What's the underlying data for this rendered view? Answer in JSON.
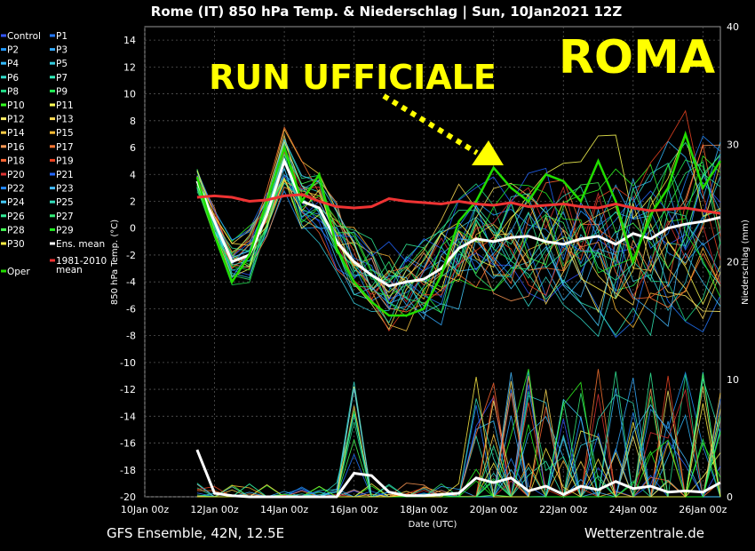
{
  "header": {
    "title": "Rome  (IT)  850 hPa Temp. & Niederschlag | Sun, 10Jan2021 12Z"
  },
  "footer": {
    "left": "GFS Ensemble, 42N, 12.5E",
    "right": "Wetterzentrale.de"
  },
  "annotations": {
    "run_label": "RUN UFFICIALE",
    "city_label": "ROMA",
    "annotation_color": "#ffff00"
  },
  "legend": [
    {
      "label": "Control",
      "color": "#3355ff"
    },
    {
      "label": "P1",
      "color": "#2277ff"
    },
    {
      "label": "P2",
      "color": "#2299ff"
    },
    {
      "label": "P3",
      "color": "#33aaff"
    },
    {
      "label": "P4",
      "color": "#33bbff"
    },
    {
      "label": "P5",
      "color": "#33ccdd"
    },
    {
      "label": "P6",
      "color": "#33ddcc"
    },
    {
      "label": "P7",
      "color": "#33eebb"
    },
    {
      "label": "P8",
      "color": "#22dd88"
    },
    {
      "label": "P9",
      "color": "#22ee55"
    },
    {
      "label": "P10",
      "color": "#33ff22"
    },
    {
      "label": "P11",
      "color": "#ffff55"
    },
    {
      "label": "P12",
      "color": "#ffee66"
    },
    {
      "label": "P13",
      "color": "#ffdd55"
    },
    {
      "label": "P14",
      "color": "#ffcc44"
    },
    {
      "label": "P15",
      "color": "#ffbb33"
    },
    {
      "label": "P16",
      "color": "#ff9955"
    },
    {
      "label": "P17",
      "color": "#ff7733"
    },
    {
      "label": "P18",
      "color": "#ff6633"
    },
    {
      "label": "P19",
      "color": "#ee4422"
    },
    {
      "label": "P20",
      "color": "#dd3333"
    },
    {
      "label": "P21",
      "color": "#2266ff"
    },
    {
      "label": "P22",
      "color": "#2288ff"
    },
    {
      "label": "P23",
      "color": "#44bbff"
    },
    {
      "label": "P24",
      "color": "#44ccff"
    },
    {
      "label": "P25",
      "color": "#33ddbb"
    },
    {
      "label": "P26",
      "color": "#33ee99"
    },
    {
      "label": "P27",
      "color": "#33ee77"
    },
    {
      "label": "P28",
      "color": "#44ff55"
    },
    {
      "label": "P29",
      "color": "#22ee22"
    },
    {
      "label": "P30",
      "color": "#ffee44"
    },
    {
      "label": "Ens. mean",
      "color": "#ffffff"
    },
    {
      "label": "Oper",
      "color": "#22dd00"
    },
    {
      "label": "1981-2010 mean",
      "color": "#ee3333"
    }
  ],
  "chart_data": {
    "type": "line",
    "ylabel": "850 hPa Temp. (°C)",
    "y2label": "Niederschlag (mm)",
    "xlabel": "Date (UTC)",
    "xlim": [
      0,
      16.5
    ],
    "ylim": [
      -20,
      15
    ],
    "y2lim": [
      0,
      40
    ],
    "xticks": [
      {
        "x": 0,
        "label": "10Jan 00z"
      },
      {
        "x": 2,
        "label": "12Jan 00z"
      },
      {
        "x": 4,
        "label": "14Jan 00z"
      },
      {
        "x": 6,
        "label": "16Jan 00z"
      },
      {
        "x": 8,
        "label": "18Jan 00z"
      },
      {
        "x": 10,
        "label": "20Jan 00z"
      },
      {
        "x": 12,
        "label": "22Jan 00z"
      },
      {
        "x": 14,
        "label": "24Jan 00z"
      },
      {
        "x": 16,
        "label": "26Jan 00z"
      }
    ],
    "yticks": [
      14,
      12,
      10,
      8,
      6,
      4,
      2,
      0,
      -2,
      -4,
      -6,
      -8,
      -10,
      -12,
      -14,
      -16,
      -18,
      -20
    ],
    "y2ticks": [
      0,
      10,
      20,
      30,
      40
    ],
    "x": [
      1.5,
      2.0,
      2.5,
      3.0,
      3.5,
      4.0,
      4.5,
      5.0,
      5.5,
      6.0,
      6.5,
      7.0,
      7.5,
      8.0,
      8.5,
      9.0,
      9.5,
      10.0,
      10.5,
      11.0,
      11.5,
      12.0,
      12.5,
      13.0,
      13.5,
      14.0,
      14.5,
      15.0,
      15.5,
      16.0,
      16.5
    ],
    "series": [
      {
        "name": "Ens. mean",
        "color": "#ffffff",
        "values": [
          3.5,
          0.5,
          -2.5,
          -2.0,
          1.0,
          5.0,
          2.0,
          1.5,
          -1.0,
          -2.5,
          -3.5,
          -4.3,
          -4.0,
          -3.8,
          -3.0,
          -1.5,
          -0.8,
          -1.0,
          -0.7,
          -0.6,
          -1.0,
          -1.2,
          -0.8,
          -0.6,
          -1.2,
          -0.4,
          -0.8,
          0.0,
          0.3,
          0.5,
          0.8
        ]
      },
      {
        "name": "Oper",
        "color": "#22dd00",
        "values": [
          3.8,
          -0.5,
          -4.0,
          -2.0,
          2.0,
          6.0,
          2.0,
          4.0,
          -1.5,
          -4.0,
          -5.5,
          -6.5,
          -6.5,
          -6.0,
          -3.5,
          0.5,
          2.0,
          4.5,
          3.0,
          2.0,
          4.0,
          3.5,
          2.0,
          5.0,
          2.0,
          -2.5,
          1.0,
          3.0,
          7.0,
          3.0,
          5.0
        ]
      },
      {
        "name": "1981-2010 mean",
        "color": "#ee3333",
        "values": [
          2.3,
          2.4,
          2.3,
          2.0,
          2.1,
          2.4,
          2.5,
          2.0,
          1.6,
          1.5,
          1.6,
          2.2,
          2.0,
          1.9,
          1.8,
          2.0,
          1.8,
          1.7,
          1.9,
          1.6,
          1.7,
          1.8,
          1.6,
          1.5,
          1.8,
          1.5,
          1.3,
          1.4,
          1.5,
          1.3,
          1.1
        ]
      }
    ]
  }
}
